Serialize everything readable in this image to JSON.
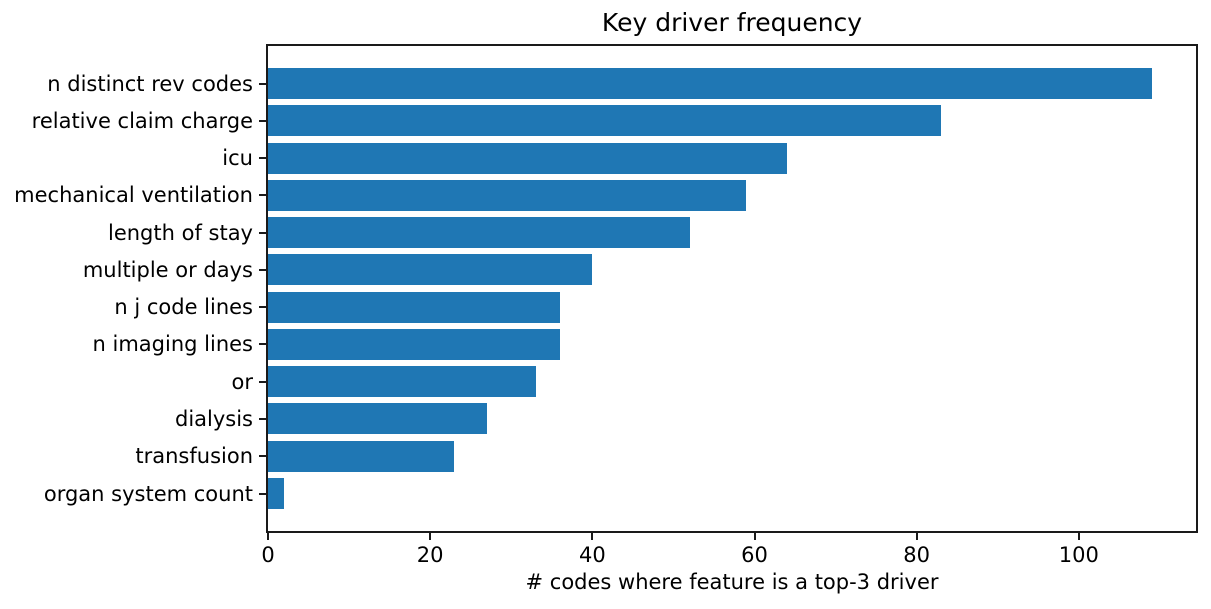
{
  "chart_data": {
    "type": "bar",
    "orientation": "horizontal",
    "title": "Key driver frequency",
    "xlabel": "# codes where feature is a top-3 driver",
    "ylabel": "",
    "categories": [
      "n distinct rev codes",
      "relative claim charge",
      "icu",
      "mechanical ventilation",
      "length of stay",
      "multiple or days",
      "n j code lines",
      "n imaging lines",
      "or",
      "dialysis",
      "transfusion",
      "organ system count"
    ],
    "values": [
      109,
      83,
      64,
      59,
      52,
      40,
      36,
      36,
      33,
      27,
      23,
      2
    ],
    "xticks": [
      0,
      20,
      40,
      60,
      80,
      100
    ],
    "xlim": [
      0,
      114.45
    ],
    "bar_color": "#1f77b4",
    "grid": false,
    "legend": false
  }
}
